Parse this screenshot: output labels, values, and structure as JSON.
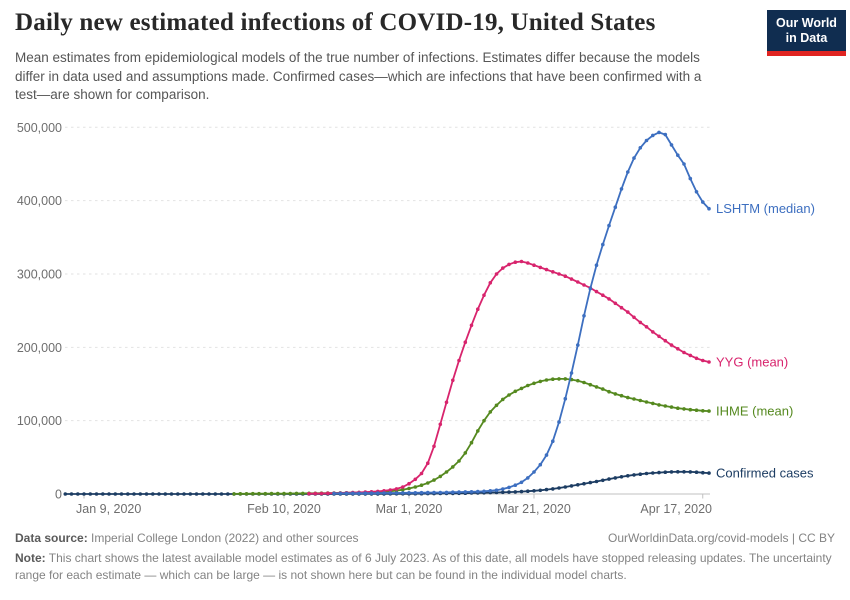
{
  "header": {
    "title": "Daily new estimated infections of COVID-19, United States",
    "subtitle": "Mean estimates from epidemiological models of the true number of infections. Estimates differ because the models differ in data used and assumptions made. Confirmed cases—which are infections that have been confirmed with a test—are shown for comparison.",
    "logo": {
      "line1": "Our World",
      "line2": "in Data",
      "bg_color": "#102d50",
      "bar_color": "#e02421"
    }
  },
  "footer": {
    "datasource_label": "Data source:",
    "datasource_value": " Imperial College London (2022) and other sources",
    "link_text": "OurWorldinData.org/covid-models",
    "separator": " | ",
    "license_text": "CC BY",
    "note_label": "Note:",
    "note_value": " This chart shows the latest available model estimates as of 6 July 2023. As of this date, all models have stopped releasing updates. The uncertainty range for each estimate — which can be large — is not shown here but can be found in the individual model charts."
  },
  "chart_data": {
    "type": "line",
    "title": "Daily new estimated infections of COVID-19, United States",
    "xlabel": "",
    "ylabel": "",
    "x_unit": "days since Jan 9, 2020",
    "x_range": [
      -3,
      100
    ],
    "ylim": [
      0,
      500000
    ],
    "grid": "dashed-horizontal",
    "legend_position": "line-end-labels",
    "x_ticks": [
      {
        "day": 0,
        "label": "Jan 9, 2020"
      },
      {
        "day": 32,
        "label": "Feb 10, 2020"
      },
      {
        "day": 52,
        "label": "Mar 1, 2020"
      },
      {
        "day": 72,
        "label": "Mar 21, 2020"
      },
      {
        "day": 99,
        "label": "Apr 17, 2020"
      }
    ],
    "y_ticks": [
      {
        "value": 0,
        "label": "0"
      },
      {
        "value": 100000,
        "label": "100,000"
      },
      {
        "value": 200000,
        "label": "200,000"
      },
      {
        "value": 300000,
        "label": "300,000"
      },
      {
        "value": 400000,
        "label": "400,000"
      },
      {
        "value": 500000,
        "label": "500,000"
      }
    ],
    "series": [
      {
        "id": "confirmed",
        "name": "Confirmed cases",
        "color": "#1d3d63",
        "start_day": -3,
        "values": [
          0,
          0,
          0,
          0,
          0,
          0,
          0,
          0,
          0,
          0,
          0,
          0,
          0,
          0,
          0,
          0,
          0,
          0,
          0,
          0,
          0,
          0,
          0,
          0,
          0,
          0,
          0,
          0,
          0,
          0,
          0,
          0,
          0,
          0,
          0,
          0,
          0,
          0,
          0,
          0,
          0,
          0,
          0,
          0,
          0,
          60,
          70,
          90,
          110,
          140,
          170,
          200,
          230,
          260,
          280,
          300,
          350,
          400,
          480,
          560,
          650,
          750,
          870,
          1000,
          1150,
          1300,
          1500,
          1700,
          1900,
          2100,
          2350,
          2600,
          2900,
          3300,
          3800,
          4400,
          5100,
          6000,
          7000,
          8200,
          9500,
          11000,
          12500,
          14000,
          15500,
          17000,
          18700,
          20300,
          21900,
          23400,
          24800,
          26000,
          27000,
          27900,
          28600,
          29200,
          29700,
          30100,
          30300,
          30300,
          30100,
          29700,
          29100,
          28500
        ]
      },
      {
        "id": "ihme",
        "name": "IHME (mean)",
        "color": "#55891f",
        "start_day": 24,
        "values": [
          200,
          250,
          300,
          350,
          400,
          450,
          500,
          550,
          600,
          700,
          750,
          800,
          900,
          1000,
          1100,
          1200,
          1300,
          1450,
          1600,
          1800,
          2000,
          2200,
          2500,
          2800,
          3200,
          3800,
          4600,
          5800,
          7500,
          9500,
          12000,
          15000,
          19000,
          24000,
          30000,
          37000,
          45000,
          56000,
          70000,
          86000,
          100000,
          112000,
          121000,
          129000,
          135000,
          140000,
          144000,
          148000,
          151000,
          153500,
          155500,
          156500,
          157000,
          157000,
          156000,
          154500,
          152000,
          149000,
          146000,
          143000,
          139500,
          136500,
          134000,
          131500,
          129500,
          127500,
          125500,
          123500,
          121500,
          120000,
          118500,
          117000,
          116000,
          115000,
          114200,
          113500,
          113000
        ]
      },
      {
        "id": "yyg",
        "name": "YYG (mean)",
        "color": "#d8246d",
        "start_day": 36,
        "values": [
          400,
          500,
          700,
          900,
          1100,
          1300,
          1600,
          1900,
          2200,
          2600,
          3000,
          3600,
          4300,
          5500,
          7000,
          9500,
          14000,
          20000,
          28000,
          42000,
          65000,
          95000,
          125000,
          155000,
          182000,
          207000,
          230000,
          252000,
          271000,
          288000,
          300000,
          308000,
          313000,
          316000,
          317000,
          315000,
          312000,
          309000,
          306000,
          303000,
          300000,
          297000,
          293000,
          289000,
          285000,
          281000,
          276000,
          271000,
          266000,
          260000,
          254000,
          248000,
          241000,
          234000,
          228000,
          221000,
          215000,
          209000,
          203000,
          198000,
          193000,
          189000,
          185000,
          182000,
          180000
        ]
      },
      {
        "id": "lshtm",
        "name": "LSHTM (median)",
        "color": "#3d6fc0",
        "start_day": 40,
        "values": [
          800,
          850,
          900,
          950,
          1000,
          1100,
          1150,
          1200,
          1300,
          1350,
          1400,
          1500,
          1600,
          1700,
          1800,
          1900,
          2000,
          2100,
          2200,
          2400,
          2600,
          2800,
          3000,
          3300,
          3700,
          4300,
          5200,
          6800,
          9000,
          12000,
          16000,
          22000,
          30000,
          40000,
          53000,
          72000,
          98000,
          130000,
          165000,
          203000,
          243000,
          280000,
          312000,
          340000,
          366000,
          391000,
          416000,
          439000,
          458000,
          472000,
          482000,
          489000,
          493000,
          490000,
          476000,
          462000,
          450000,
          430000,
          412000,
          398000,
          389000
        ]
      }
    ]
  }
}
